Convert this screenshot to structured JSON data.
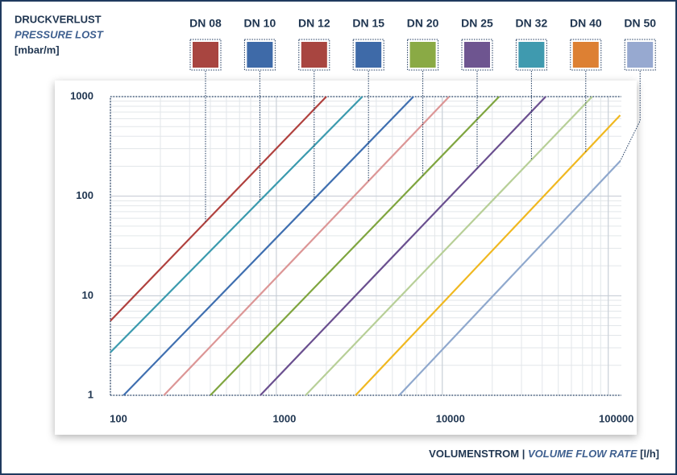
{
  "chart_data": {
    "type": "line",
    "y_title": "DRUCKVERLUST",
    "y_subtitle": "PRESSURE LOST",
    "y_unit": "[mbar/m]",
    "x_label": "VOLUMENSTROM",
    "x_label_separator": "|",
    "x_label_en": "VOLUME FLOW RATE",
    "x_unit": "[l/h]",
    "log_x": true,
    "log_y": true,
    "grid": true,
    "minor_grid": true,
    "xlim": [
      100,
      120000
    ],
    "ylim": [
      1,
      1000
    ],
    "xticks": [
      100,
      1000,
      10000,
      100000
    ],
    "yticks": [
      1,
      10,
      100,
      1000
    ],
    "series": [
      {
        "name": "DN 08",
        "color": "#b0413e",
        "swatch_color": "#a84540",
        "x": [
          100,
          2000
        ],
        "values": [
          5.6,
          1000
        ]
      },
      {
        "name": "DN 10",
        "color": "#3b9aae",
        "swatch_color": "#3e6aa8",
        "x": [
          100,
          3300
        ],
        "values": [
          2.7,
          1000
        ]
      },
      {
        "name": "DN 12",
        "color": "#3f6fb0",
        "swatch_color": "#a84540",
        "x": [
          120,
          6700
        ],
        "values": [
          1,
          1000
        ]
      },
      {
        "name": "DN 15",
        "color": "#dc9696",
        "swatch_color": "#3e6aa8",
        "x": [
          210,
          11000
        ],
        "values": [
          1,
          1000
        ]
      },
      {
        "name": "DN 20",
        "color": "#7fa53f",
        "swatch_color": "#8aaa45",
        "x": [
          400,
          22000
        ],
        "values": [
          1,
          1000
        ]
      },
      {
        "name": "DN 25",
        "color": "#6a4f8f",
        "swatch_color": "#6e5590",
        "x": [
          800,
          42000
        ],
        "values": [
          1,
          1000
        ]
      },
      {
        "name": "DN 32",
        "color": "#b7cf97",
        "swatch_color": "#3f9aaf",
        "x": [
          1500,
          80000
        ],
        "values": [
          1,
          1000
        ]
      },
      {
        "name": "DN 40",
        "color": "#f0b820",
        "swatch_color": "#dd8033",
        "x": [
          3000,
          118000
        ],
        "values": [
          1,
          650
        ]
      },
      {
        "name": "DN 50",
        "color": "#8fa8cd",
        "swatch_color": "#97a9d0",
        "x": [
          5500,
          118000
        ],
        "values": [
          1,
          225
        ]
      }
    ]
  }
}
